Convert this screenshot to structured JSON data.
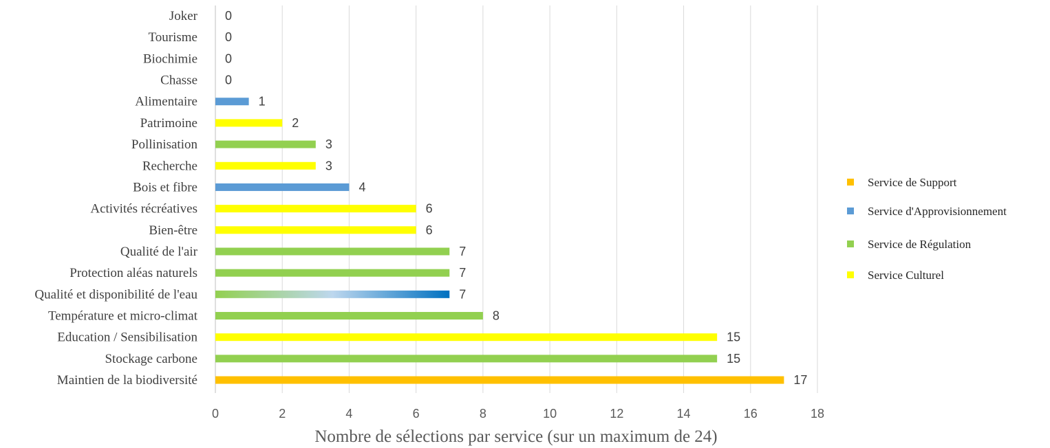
{
  "chart_data": {
    "type": "bar",
    "orientation": "horizontal",
    "xlabel": "Nombre de sélections par service (sur un maximum  de 24)",
    "xlim": [
      0,
      18
    ],
    "xticks": [
      0,
      2,
      4,
      6,
      8,
      10,
      12,
      14,
      16,
      18
    ],
    "grid": true,
    "legend_position": "right",
    "data_labels": true,
    "categories": [
      {
        "label": "Joker",
        "value": 0,
        "service": "none"
      },
      {
        "label": "Tourisme",
        "value": 0,
        "service": "none"
      },
      {
        "label": "Biochimie",
        "value": 0,
        "service": "none"
      },
      {
        "label": "Chasse",
        "value": 0,
        "service": "none"
      },
      {
        "label": "Alimentaire",
        "value": 1,
        "service": "approvisionnement"
      },
      {
        "label": "Patrimoine",
        "value": 2,
        "service": "culturel"
      },
      {
        "label": "Pollinisation",
        "value": 3,
        "service": "regulation"
      },
      {
        "label": "Recherche",
        "value": 3,
        "service": "culturel"
      },
      {
        "label": "Bois et fibre",
        "value": 4,
        "service": "approvisionnement"
      },
      {
        "label": "Activités récréatives",
        "value": 6,
        "service": "culturel"
      },
      {
        "label": "Bien-être",
        "value": 6,
        "service": "culturel"
      },
      {
        "label": "Qualité de l'air",
        "value": 7,
        "service": "regulation"
      },
      {
        "label": "Protection aléas naturels",
        "value": 7,
        "service": "regulation"
      },
      {
        "label": "Qualité et disponibilité de l'eau",
        "value": 7,
        "service": "regulation+approvisionnement"
      },
      {
        "label": "Température et micro-climat",
        "value": 8,
        "service": "regulation"
      },
      {
        "label": "Education / Sensibilisation",
        "value": 15,
        "service": "culturel"
      },
      {
        "label": "Stockage carbone",
        "value": 15,
        "service": "regulation"
      },
      {
        "label": "Maintien de la biodiversité",
        "value": 17,
        "service": "support"
      }
    ],
    "legend": [
      {
        "key": "support",
        "label": "Service de Support",
        "color": "#FFC000"
      },
      {
        "key": "approvisionnement",
        "label": "Service d'Approvisionnement",
        "color": "#5B9BD5"
      },
      {
        "key": "regulation",
        "label": "Service de Régulation",
        "color": "#92D050"
      },
      {
        "key": "culturel",
        "label": "Service Culturel",
        "color": "#FFFF00"
      }
    ],
    "colors": {
      "support": "#FFC000",
      "approvisionnement": "#5B9BD5",
      "regulation": "#92D050",
      "culturel": "#FFFF00",
      "gradient_stops": [
        "#92D050",
        "#BDD7EE",
        "#0070C0"
      ],
      "grid": "#D9D9D9",
      "axis": "#BFBFBF"
    }
  }
}
